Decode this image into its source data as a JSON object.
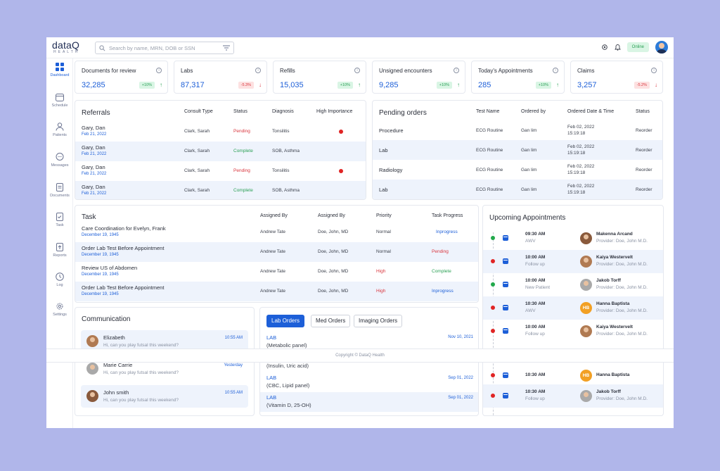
{
  "brand": {
    "name": "dataQ",
    "sub": "HEALTH"
  },
  "search": {
    "placeholder": "Search by name, MRN, DOB or SSN"
  },
  "status": "Online",
  "nav": [
    "Dashboard",
    "Schedule",
    "Patients",
    "Messages",
    "Documents",
    "Task",
    "Reports",
    "Log",
    "Settings"
  ],
  "stats": [
    {
      "title": "Documents for review",
      "value": "32,285",
      "delta": "+10%",
      "dir": "up"
    },
    {
      "title": "Labs",
      "value": "87,317",
      "delta": "-5.3%",
      "dir": "down"
    },
    {
      "title": "Refills",
      "value": "15,035",
      "delta": "+10%",
      "dir": "up"
    },
    {
      "title": "Unsigned encounters",
      "value": "9,285",
      "delta": "+10%",
      "dir": "up"
    },
    {
      "title": "Today's Appointments",
      "value": "285",
      "delta": "+10%",
      "dir": "up"
    },
    {
      "title": "Claims",
      "value": "3,257",
      "delta": "-5.2%",
      "dir": "down"
    }
  ],
  "referrals": {
    "title": "Referrals",
    "headers": [
      "Consult Type",
      "Status",
      "Diagnosis",
      "High Importance"
    ],
    "rows": [
      {
        "name": "Gary, Dan",
        "date": "Feb 21, 2022",
        "consult": "Clark, Sarah",
        "status": "Pending",
        "diagnosis": "Tonsilitis",
        "high": true
      },
      {
        "name": "Gary, Dan",
        "date": "Feb 21, 2022",
        "consult": "Clark, Sarah",
        "status": "Complete",
        "diagnosis": "SOB, Asthma",
        "high": false
      },
      {
        "name": "Gary, Dan",
        "date": "Feb 21, 2022",
        "consult": "Clark, Sarah",
        "status": "Pending",
        "diagnosis": "Tonsilitis",
        "high": true
      },
      {
        "name": "Gary, Dan",
        "date": "Feb 21, 2022",
        "consult": "Clark, Sarah",
        "status": "Complete",
        "diagnosis": "SOB, Asthma",
        "high": false
      }
    ]
  },
  "pending_orders": {
    "title": "Pending orders",
    "headers": [
      "Test Name",
      "Ordered by",
      "Ordered Date & Time",
      "Status"
    ],
    "rows": [
      {
        "type": "Procedure",
        "test": "ECG Routine",
        "by": "Gan lim",
        "date": "Feb 02, 2022",
        "time": "15:19:18",
        "status": "Reorder"
      },
      {
        "type": "Lab",
        "test": "ECG Routine",
        "by": "Gan lim",
        "date": "Feb 02, 2022",
        "time": "15:19:18",
        "status": "Reorder"
      },
      {
        "type": "Radiology",
        "test": "ECG Routine",
        "by": "Gan lim",
        "date": "Feb 02, 2022",
        "time": "15:19:18",
        "status": "Reorder"
      },
      {
        "type": "Lab",
        "test": "ECG Routine",
        "by": "Gan lim",
        "date": "Feb 02, 2022",
        "time": "15:19:18",
        "status": "Reorder"
      }
    ]
  },
  "task": {
    "title": "Task",
    "headers": [
      "Assigned By",
      "Assigned By",
      "Priority",
      "Task Progress"
    ],
    "rows": [
      {
        "name": "Care Coordination for Evelyn, Frank",
        "date": "December 19, 1945",
        "a1": "Andrew Tate",
        "a2": "Doe, John, MD",
        "priority": "Normal",
        "progress": "Inprogress"
      },
      {
        "name": "Order Lab Test Before Appointment",
        "date": "December 19, 1945",
        "a1": "Andrew Tate",
        "a2": "Doe, John, MD",
        "priority": "Normal",
        "progress": "Pending"
      },
      {
        "name": "Review US of Abdomen",
        "date": "December 19, 1945",
        "a1": "Andrew Tate",
        "a2": "Doe, John, MD",
        "priority": "High",
        "progress": "Complete"
      },
      {
        "name": "Order Lab Test Before Appointment",
        "date": "December 19, 1945",
        "a1": "Andrew Tate",
        "a2": "Doe, John, MD",
        "priority": "High",
        "progress": "Inprogress"
      }
    ]
  },
  "appointments": {
    "title": "Upcoming Appointments",
    "rows": [
      {
        "time": "09:30 AM",
        "type": "AWV",
        "name": "Makenna Arcand",
        "provider": "Provider: Doe, John M.D.",
        "dot": "green",
        "av": "p1",
        "initials": ""
      },
      {
        "time": "10:00 AM",
        "type": "Follow up",
        "name": "Kaiya Westervelt",
        "provider": "Provider: Doe, John M.D.",
        "dot": "red",
        "av": "p2",
        "initials": ""
      },
      {
        "time": "10:00 AM",
        "type": "New Patient",
        "name": "Jakob Torff",
        "provider": "Provider: Doe, John M.D.",
        "dot": "green",
        "av": "p3",
        "initials": ""
      },
      {
        "time": "10:30 AM",
        "type": "AWV",
        "name": "Hanna Baptista",
        "provider": "Provider: Doe, John M.D.",
        "dot": "red",
        "av": "hb",
        "initials": "HB"
      },
      {
        "time": "10:00 AM",
        "type": "Follow up",
        "name": "Kaiya Westervelt",
        "provider": "Provider: Doe, John M.D.",
        "dot": "red",
        "av": "p2",
        "initials": ""
      },
      {
        "time": "10:30 AM",
        "type": "",
        "name": "Hanna Baptista",
        "provider": "",
        "dot": "red",
        "av": "hb",
        "initials": "HB"
      },
      {
        "time": "10:30 AM",
        "type": "Follow up",
        "name": "Jakob Torff",
        "provider": "Provider: Doe, John M.D.",
        "dot": "red",
        "av": "p3",
        "initials": ""
      }
    ]
  },
  "communication": {
    "title": "Communication",
    "rows": [
      {
        "name": "Elizabeth",
        "msg": "Hi, can you play futsal this weekend?",
        "time": "10:55 AM"
      },
      {
        "name": "Marie Carrie",
        "msg": "Hi, can you play futsal this weekend?",
        "time": "Yesterday"
      },
      {
        "name": "John smith",
        "msg": "Hi, can you play futsal this weekend?",
        "time": "10:55 AM"
      }
    ]
  },
  "orders": {
    "tabs": [
      "Lab Orders",
      "Med Orders",
      "Imaging Orders"
    ],
    "rows": [
      {
        "label": "LAB",
        "detail": "(Metabolic panel)",
        "date": "Nov 10, 2021"
      },
      {
        "label": "",
        "detail": "(Insulin, Uric acid)",
        "date": ""
      },
      {
        "label": "LAB",
        "detail": "(CBC, Lipid panel)",
        "date": "Sep 01, 2022"
      },
      {
        "label": "LAB",
        "detail": "(Vitamin D, 25-OH)",
        "date": "Sep 01, 2022"
      }
    ]
  },
  "footer": "Copyright © DataQ Health"
}
